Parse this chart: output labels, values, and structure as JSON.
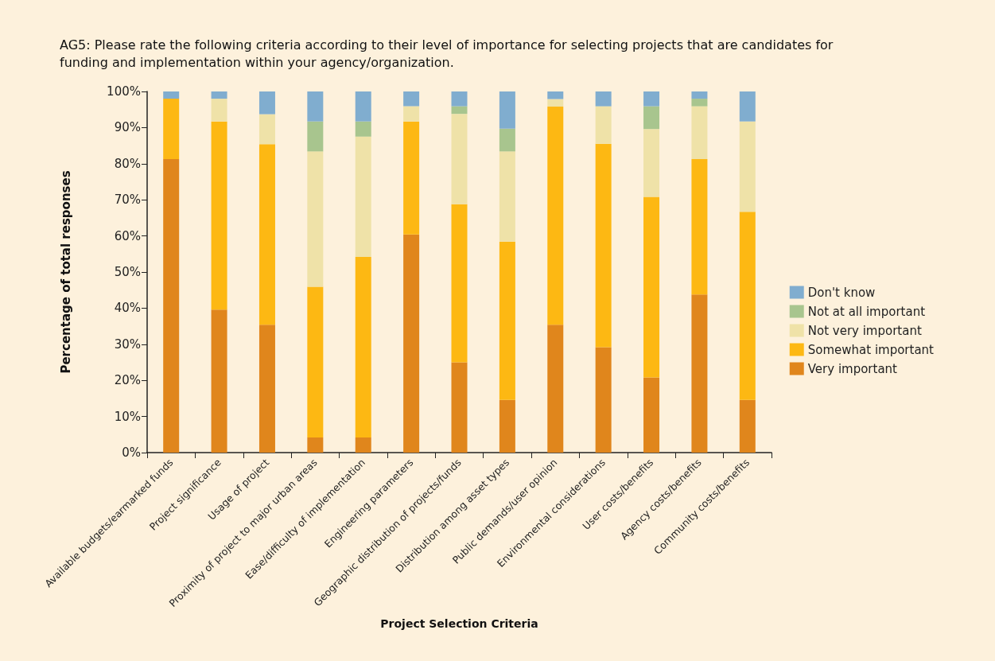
{
  "chart_data": {
    "type": "bar",
    "stacked": true,
    "title": "AG5: Please rate the following criteria according to their level of importance for selecting projects that are candidates for funding and implementation within your agency/organization.",
    "xlabel": "Project Selection Criteria",
    "ylabel": "Percentage of total responses",
    "categories": [
      "Available budgets/earmarked funds",
      "Project significance",
      "Usage of project",
      "Proximity of project to major urban areas",
      "Ease/difficulty of implementation",
      "Engineering parameters",
      "Geographic distribution of projects/funds",
      "Distribution among asset types",
      "Public demands/user opinion",
      "Environmental considerations",
      "User costs/benefits",
      "Agency costs/benefits",
      "Community costs/benefits"
    ],
    "series": [
      {
        "name": "Very important",
        "color": "#e0861c",
        "values": [
          81.3,
          39.6,
          35.4,
          4.2,
          4.2,
          60.4,
          25,
          14.6,
          35.4,
          29.2,
          20.8,
          43.8,
          14.6
        ]
      },
      {
        "name": "Somewhat important",
        "color": "#fdb813",
        "values": [
          16.7,
          52.1,
          50,
          41.7,
          50,
          31.3,
          43.8,
          43.8,
          60.4,
          56.3,
          50,
          37.5,
          52.1
        ]
      },
      {
        "name": "Not very important",
        "color": "#efe2a8",
        "values": [
          0,
          6.3,
          8.3,
          37.5,
          33.3,
          4.2,
          25,
          25,
          2.1,
          10.4,
          18.8,
          14.6,
          25
        ]
      },
      {
        "name": "Not at all important",
        "color": "#a8c58e",
        "values": [
          0,
          0,
          0,
          8.3,
          4.2,
          0,
          2.1,
          6.3,
          0,
          0,
          6.3,
          2.1,
          0
        ]
      },
      {
        "name": "Don't know",
        "color": "#80adcf",
        "values": [
          2.1,
          2.1,
          6.3,
          8.3,
          8.3,
          4.2,
          4.2,
          10.4,
          2.1,
          4.2,
          4.2,
          2.1,
          8.3
        ]
      }
    ],
    "ylim": [
      0,
      100
    ],
    "yticks": [
      {
        "value": 0,
        "label": "0%"
      },
      {
        "value": 10,
        "label": "10%"
      },
      {
        "value": 20,
        "label": "20%"
      },
      {
        "value": 30,
        "label": "30%"
      },
      {
        "value": 40,
        "label": "40%"
      },
      {
        "value": 50,
        "label": "50%"
      },
      {
        "value": 60,
        "label": "60%"
      },
      {
        "value": 70,
        "label": "70%"
      },
      {
        "value": 80,
        "label": "80%"
      },
      {
        "value": 90,
        "label": "90%"
      },
      {
        "value": 100,
        "label": "100%"
      }
    ],
    "grid": false,
    "legend": "right"
  }
}
